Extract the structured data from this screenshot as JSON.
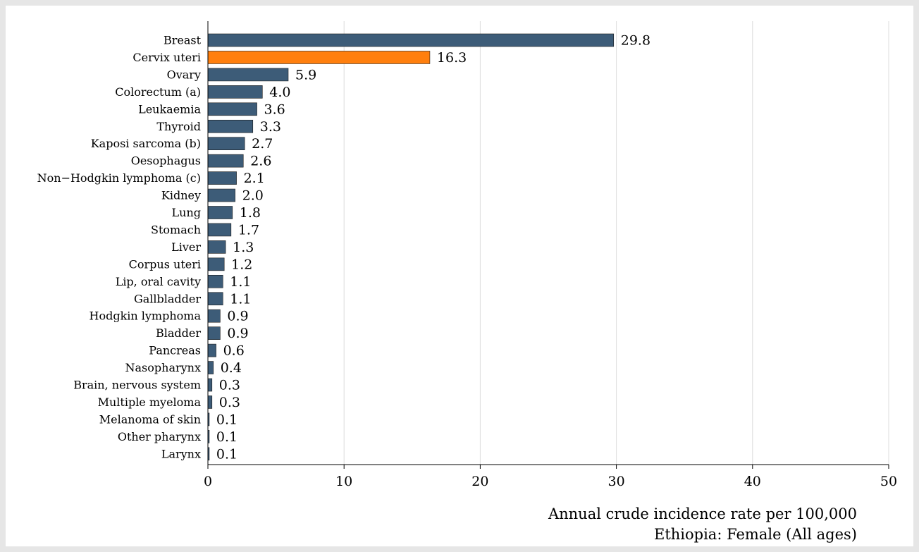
{
  "chart_data": {
    "type": "bar",
    "orientation": "horizontal",
    "categories": [
      "Breast",
      "Cervix uteri",
      "Ovary",
      "Colorectum (a)",
      "Leukaemia",
      "Thyroid",
      "Kaposi sarcoma (b)",
      "Oesophagus",
      "Non−Hodgkin lymphoma (c)",
      "Kidney",
      "Lung",
      "Stomach",
      "Liver",
      "Corpus uteri",
      "Lip, oral cavity",
      "Gallbladder",
      "Hodgkin lymphoma",
      "Bladder",
      "Pancreas",
      "Nasopharynx",
      "Brain, nervous system",
      "Multiple myeloma",
      "Melanoma of skin",
      "Other pharynx",
      "Larynx"
    ],
    "values": [
      29.8,
      16.3,
      5.9,
      4.0,
      3.6,
      3.3,
      2.7,
      2.6,
      2.1,
      2.0,
      1.8,
      1.7,
      1.3,
      1.2,
      1.1,
      1.1,
      0.9,
      0.9,
      0.6,
      0.4,
      0.3,
      0.3,
      0.1,
      0.1,
      0.1
    ],
    "value_labels": [
      "29.8",
      "16.3",
      "5.9",
      "4.0",
      "3.6",
      "3.3",
      "2.7",
      "2.6",
      "2.1",
      "2.0",
      "1.8",
      "1.7",
      "1.3",
      "1.2",
      "1.1",
      "1.1",
      "0.9",
      "0.9",
      "0.6",
      "0.4",
      "0.3",
      "0.3",
      "0.1",
      "0.1",
      "0.1"
    ],
    "highlight_index": 1,
    "xlim": [
      0,
      50
    ],
    "xticks": [
      0,
      10,
      20,
      30,
      40,
      50
    ],
    "xtick_labels": [
      "0",
      "10",
      "20",
      "30",
      "40",
      "50"
    ],
    "xlabel": "Annual crude incidence rate per 100,000",
    "subtitle": "Ethiopia: Female  (All ages)",
    "grid": "vertical",
    "colors": {
      "bar": "#3d5c78",
      "highlight": "#ff7f0e",
      "grid": "#dcdcdc",
      "axis": "#000000"
    }
  }
}
